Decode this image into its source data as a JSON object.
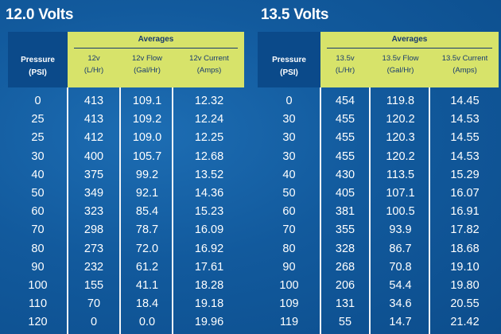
{
  "tables": [
    {
      "title": "12.0 Volts",
      "averages_label": "Averages",
      "pressure_header": [
        "Pressure",
        "(PSI)"
      ],
      "columns": [
        [
          "12v",
          "(L/Hr)"
        ],
        [
          "12v Flow",
          "(Gal/Hr)"
        ],
        [
          "12v Current",
          "(Amps)"
        ]
      ],
      "rows": [
        [
          "0",
          "413",
          "109.1",
          "12.32"
        ],
        [
          "25",
          "413",
          "109.2",
          "12.24"
        ],
        [
          "25",
          "412",
          "109.0",
          "12.25"
        ],
        [
          "30",
          "400",
          "105.7",
          "12.68"
        ],
        [
          "40",
          "375",
          "99.2",
          "13.52"
        ],
        [
          "50",
          "349",
          "92.1",
          "14.36"
        ],
        [
          "60",
          "323",
          "85.4",
          "15.23"
        ],
        [
          "70",
          "298",
          "78.7",
          "16.09"
        ],
        [
          "80",
          "273",
          "72.0",
          "16.92"
        ],
        [
          "90",
          "232",
          "61.2",
          "17.61"
        ],
        [
          "100",
          "155",
          "41.1",
          "18.28"
        ],
        [
          "110",
          "70",
          "18.4",
          "19.18"
        ],
        [
          "120",
          "0",
          "0.0",
          "19.96"
        ]
      ]
    },
    {
      "title": "13.5 Volts",
      "averages_label": "Averages",
      "pressure_header": [
        "Pressure",
        "(PSI)"
      ],
      "columns": [
        [
          "13.5v",
          "(L/Hr)"
        ],
        [
          "13.5v Flow",
          "(Gal/Hr)"
        ],
        [
          "13.5v Current",
          "(Amps)"
        ]
      ],
      "rows": [
        [
          "0",
          "454",
          "119.8",
          "14.45"
        ],
        [
          "30",
          "455",
          "120.2",
          "14.53"
        ],
        [
          "30",
          "455",
          "120.3",
          "14.55"
        ],
        [
          "30",
          "455",
          "120.2",
          "14.53"
        ],
        [
          "40",
          "430",
          "113.5",
          "15.29"
        ],
        [
          "50",
          "405",
          "107.1",
          "16.07"
        ],
        [
          "60",
          "381",
          "100.5",
          "16.91"
        ],
        [
          "70",
          "355",
          "93.9",
          "17.82"
        ],
        [
          "80",
          "328",
          "86.7",
          "18.68"
        ],
        [
          "90",
          "268",
          "70.8",
          "19.10"
        ],
        [
          "100",
          "206",
          "54.4",
          "19.80"
        ],
        [
          "109",
          "131",
          "34.6",
          "20.55"
        ],
        [
          "119",
          "55",
          "14.7",
          "21.42"
        ]
      ]
    }
  ],
  "colors": {
    "header_green": "#d7e36a",
    "header_dark": "#0b4a8a",
    "background": "#125a9d",
    "divider": "#f2f5f8"
  }
}
